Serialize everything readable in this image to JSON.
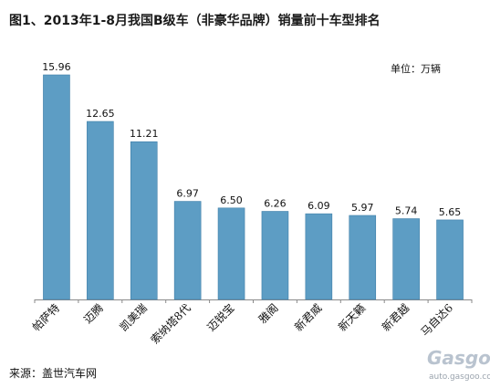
{
  "title": "图1、2013年1-8月我国B级车（非豪华品牌）销量前十车型排名",
  "unit_label": "单位：万辆",
  "source": "来源：盖世汽车网",
  "watermark": {
    "logo": "Gasgoo",
    "url": "auto.gasgoo.com"
  },
  "colors": {
    "bar": "#5d9dc4",
    "bar_edge": "#3f7fa8",
    "axis": "#8a8a8a"
  },
  "chart_data": {
    "type": "bar",
    "title": "图1、2013年1-8月我国B级车（非豪华品牌）销量前十车型排名",
    "ylabel": "单位：万辆",
    "categories": [
      "帕萨特",
      "迈腾",
      "凯美瑞",
      "索纳塔8代",
      "迈锐宝",
      "雅阁",
      "新君威",
      "新天籁",
      "新君越",
      "马自达6"
    ],
    "values": [
      15.96,
      12.65,
      11.21,
      6.97,
      6.5,
      6.26,
      6.09,
      5.97,
      5.74,
      5.65
    ],
    "value_labels": [
      "15.96",
      "12.65",
      "11.21",
      "6.97",
      "6.50",
      "6.26",
      "6.09",
      "5.97",
      "5.74",
      "5.65"
    ],
    "ylim": [
      0,
      17
    ],
    "grid": false,
    "legend": "none"
  }
}
